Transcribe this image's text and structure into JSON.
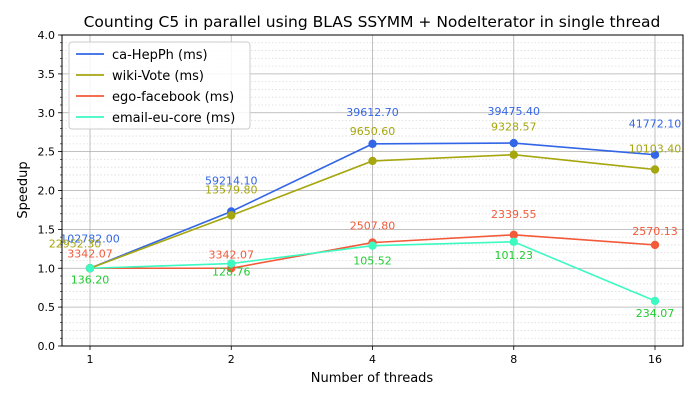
{
  "chart_data": {
    "type": "line",
    "title": "Counting C5 in parallel using BLAS SSYMM + NodeIterator in single thread",
    "xlabel": "Number of threads",
    "ylabel": "Speedup",
    "categories": [
      "1",
      "2",
      "4",
      "8",
      "16"
    ],
    "x_scale": "log2",
    "ylim": [
      0.0,
      4.0
    ],
    "yticks": [
      "0.0",
      "0.5",
      "1.0",
      "1.5",
      "2.0",
      "2.5",
      "3.0",
      "3.5",
      "4.0"
    ],
    "grid": true,
    "legend_position": "top-left",
    "series": [
      {
        "name": "ca-HepPh (ms)",
        "color": "#3366e6",
        "values": [
          1.0,
          1.73,
          2.6,
          2.61,
          2.46
        ],
        "labels": [
          "102782.00",
          "59214.10",
          "39612.70",
          "39475.40",
          "41772.10"
        ]
      },
      {
        "name": "wiki-Vote (ms)",
        "color": "#a6a60f",
        "values": [
          1.0,
          1.68,
          2.38,
          2.46,
          2.27
        ],
        "labels": [
          "22952.30",
          "13579.80",
          "9650.60",
          "9328.57",
          "10103.40"
        ]
      },
      {
        "name": "ego-facebook (ms)",
        "color": "#f25a3a",
        "values": [
          1.0,
          1.0,
          1.33,
          1.43,
          1.3
        ],
        "labels": [
          "3342.07",
          "3342.07",
          "2507.80",
          "2339.55",
          "2570.13"
        ]
      },
      {
        "name": "email-eu-core (ms)",
        "color": "#3dfac2",
        "label_color": "#22cc33",
        "values": [
          1.0,
          1.06,
          1.29,
          1.34,
          0.58
        ],
        "labels": [
          "136.20",
          "128.76",
          "105.52",
          "101.23",
          "234.07"
        ]
      }
    ]
  }
}
